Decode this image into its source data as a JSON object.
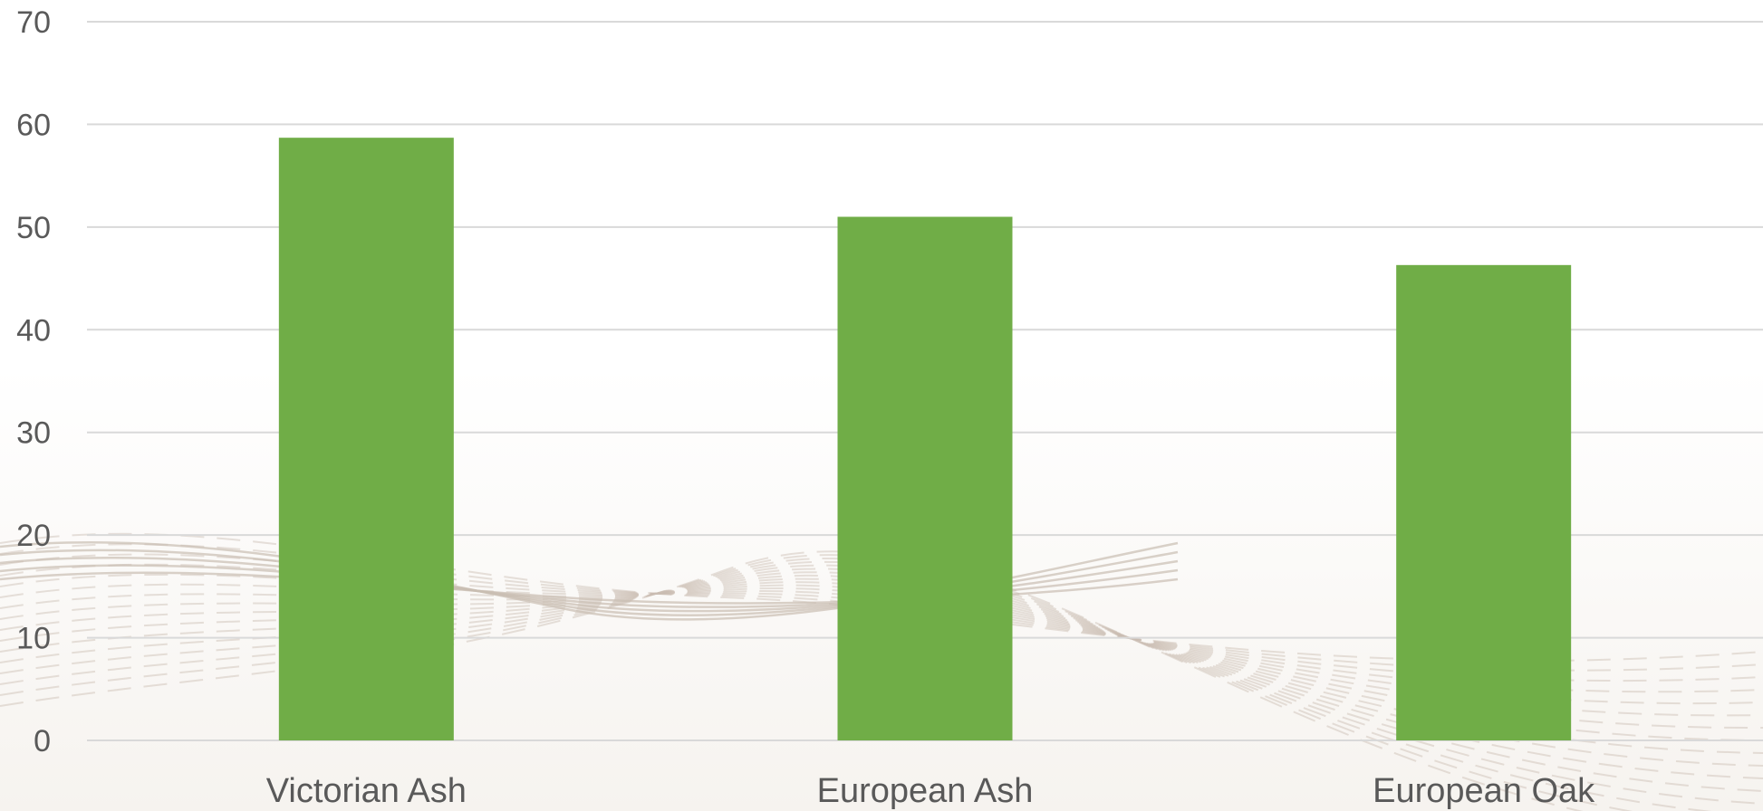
{
  "chart_data": {
    "type": "bar",
    "categories": [
      "Victorian Ash",
      "European Ash",
      "European Oak"
    ],
    "series": [
      {
        "values": [
          58.7,
          51.0,
          46.3
        ]
      }
    ],
    "yticks": [
      "0",
      "10",
      "20",
      "30",
      "40",
      "50",
      "60",
      "70"
    ],
    "ylim": [
      0,
      70
    ],
    "grid": true,
    "legend": "none",
    "colors": {
      "bar": "#70AD47",
      "grid": "#D9D9D9",
      "text": "#595959",
      "background_lines": "#C9BDB2"
    }
  }
}
